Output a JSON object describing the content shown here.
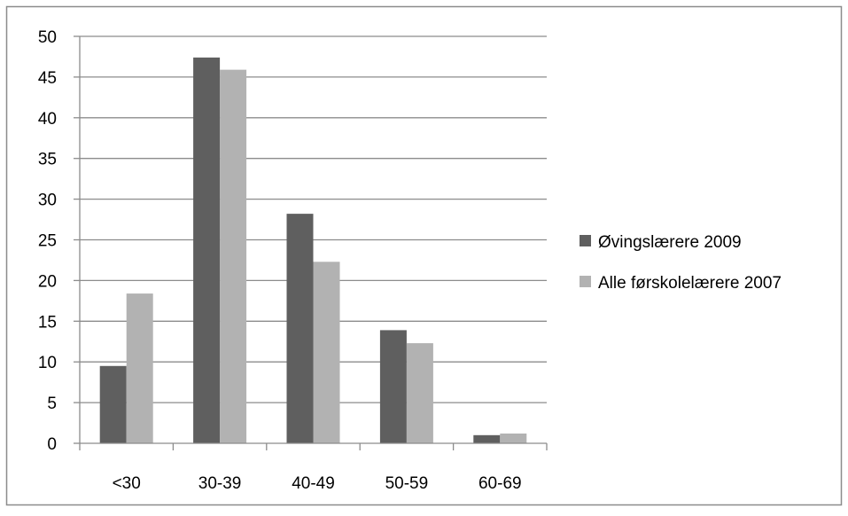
{
  "chart_data": {
    "type": "bar",
    "title": "",
    "xlabel": "",
    "ylabel": "",
    "categories": [
      "<30",
      "30-39",
      "40-49",
      "50-59",
      "60-69"
    ],
    "series": [
      {
        "name": "Øvingslærere 2009",
        "color": "#5f5f5f",
        "values": [
          9.5,
          47.4,
          28.2,
          13.9,
          1.0
        ]
      },
      {
        "name": "Alle førskolelærere 2007",
        "color": "#b2b2b2",
        "values": [
          18.4,
          45.9,
          22.3,
          12.3,
          1.2
        ]
      }
    ],
    "ylim": [
      0,
      50
    ],
    "yticks": [
      0,
      5,
      10,
      15,
      20,
      25,
      30,
      35,
      40,
      45,
      50
    ],
    "grid": true,
    "legend_position": "right",
    "colors": {
      "gridline": "#8c8c8c",
      "axis": "#8c8c8c",
      "border": "#8c8c8c"
    }
  }
}
